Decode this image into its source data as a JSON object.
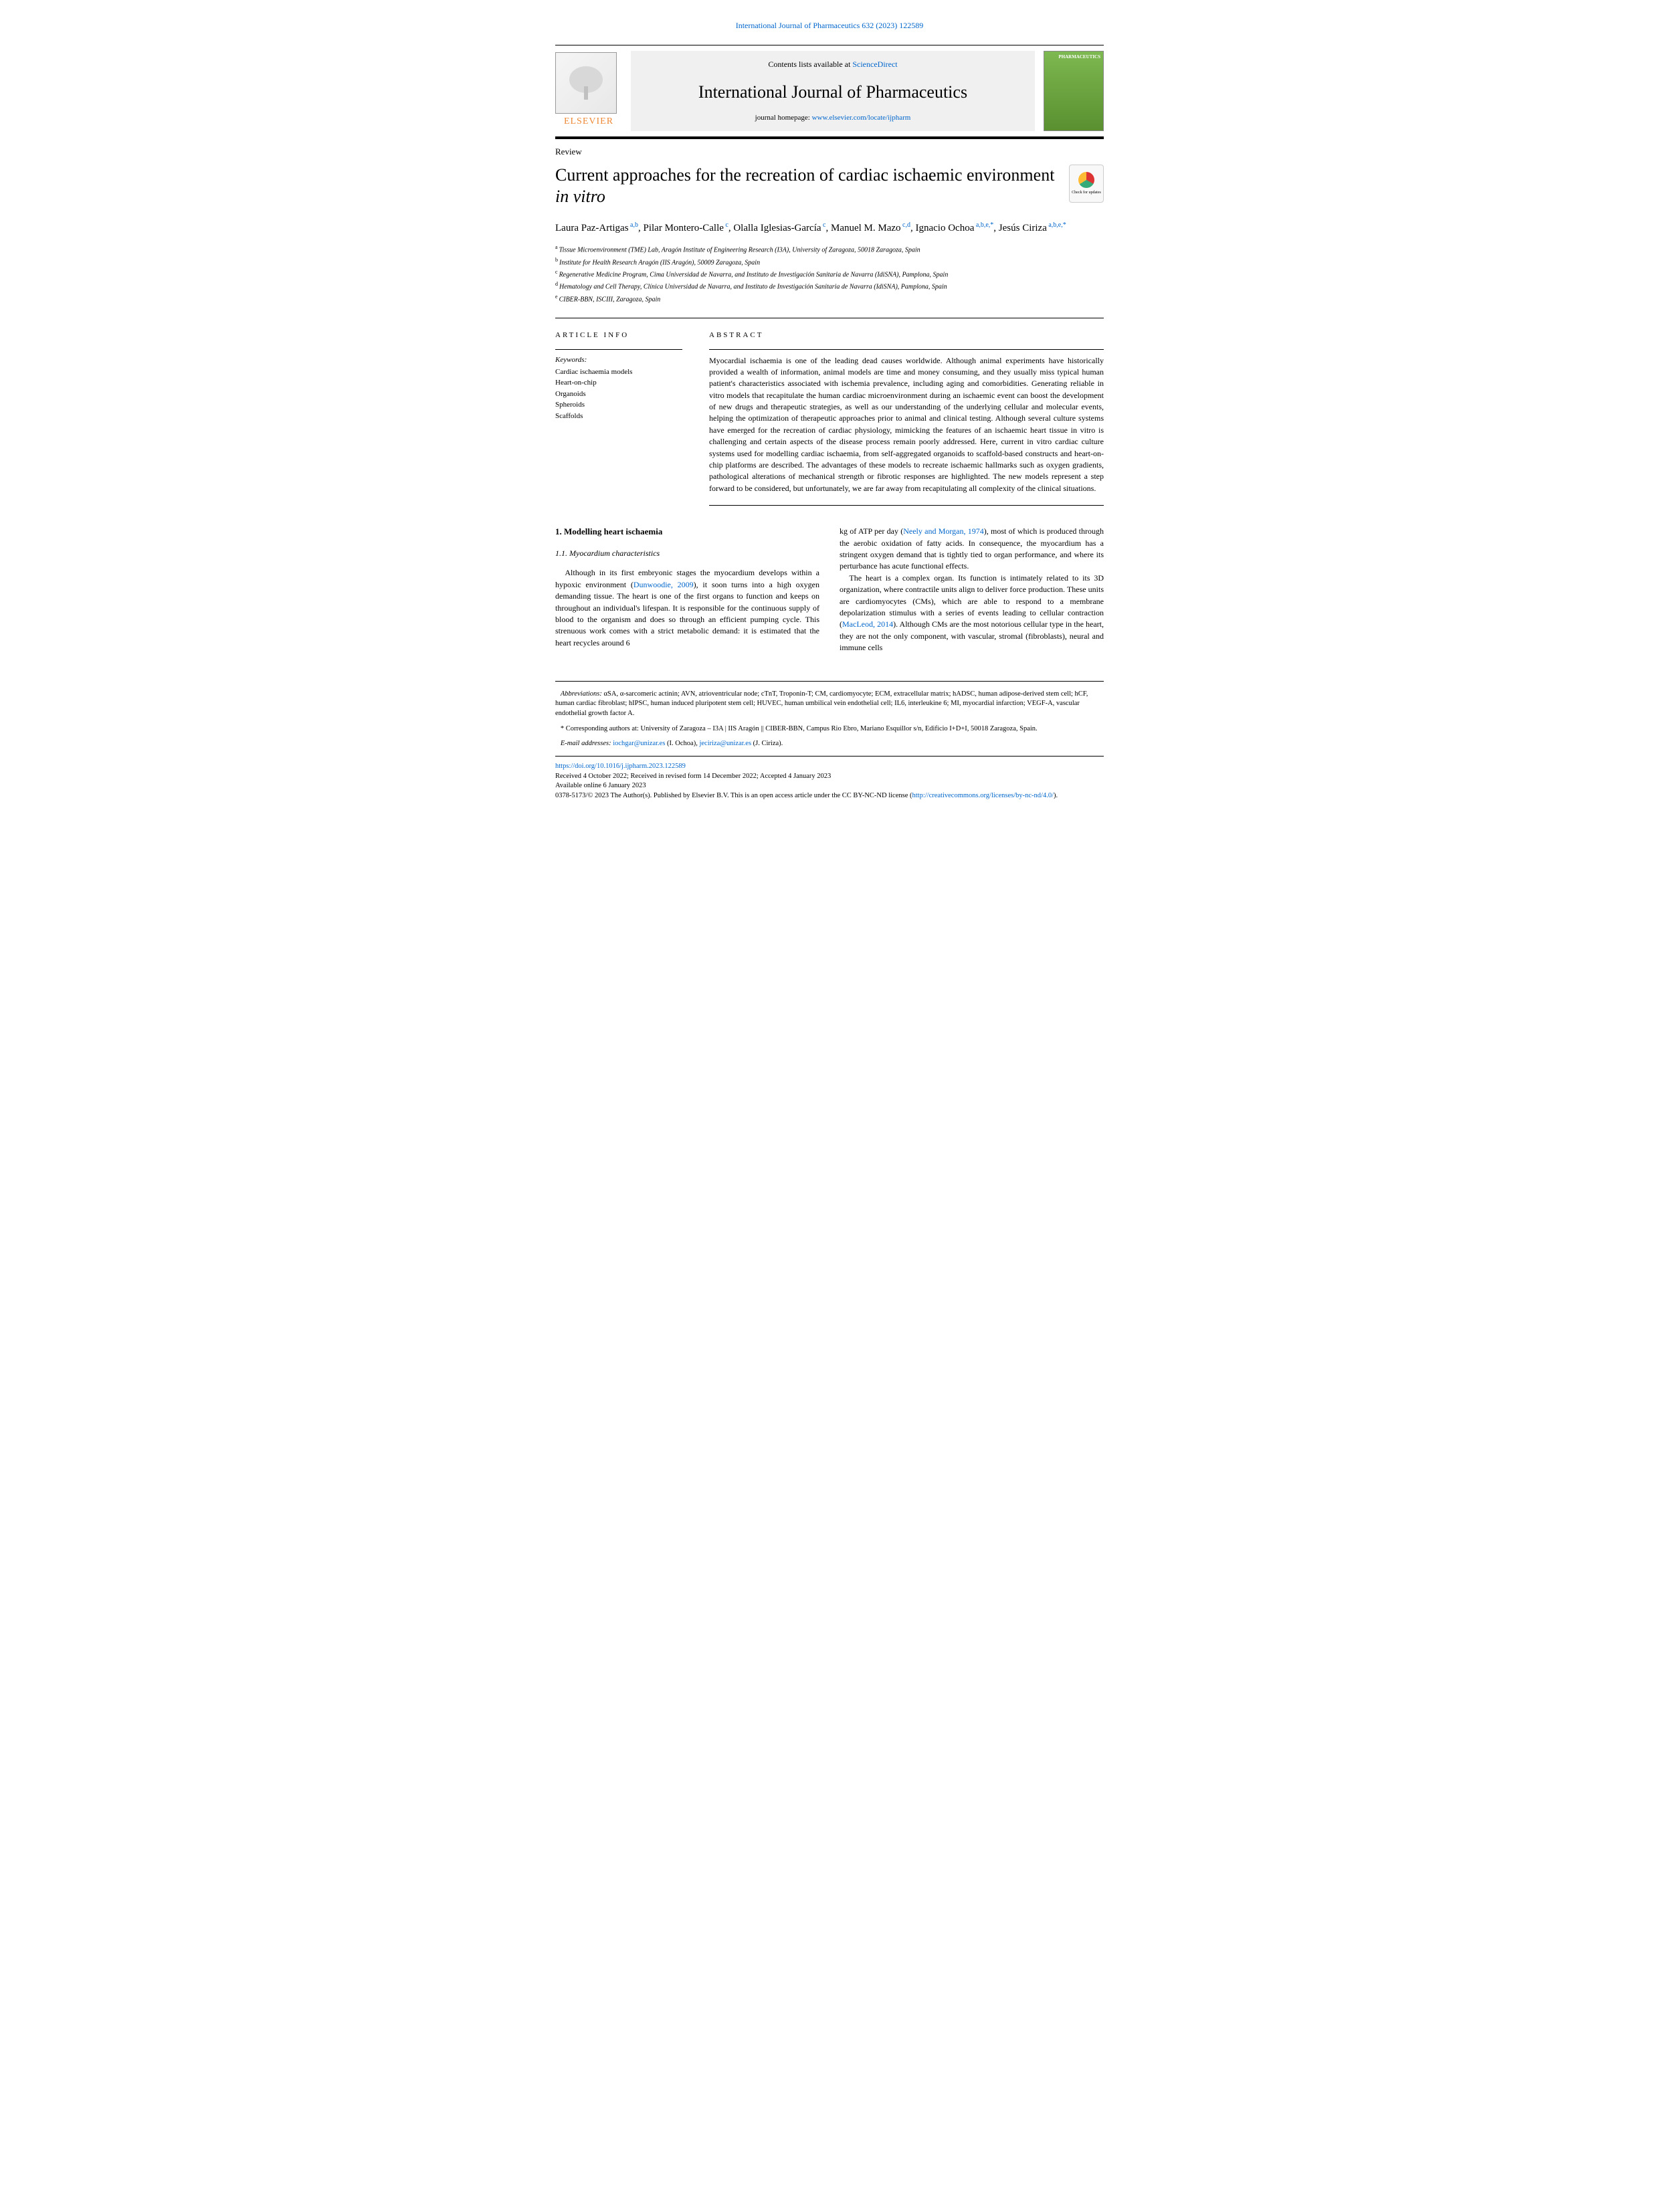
{
  "citation": "International Journal of Pharmaceutics 632 (2023) 122589",
  "header": {
    "contents_prefix": "Contents lists available at ",
    "contents_link": "ScienceDirect",
    "journal_name": "International Journal of Pharmaceutics",
    "homepage_prefix": "journal homepage: ",
    "homepage_url": "www.elsevier.com/locate/ijpharm",
    "publisher": "ELSEVIER",
    "cover_text": "PHARMACEUTICS"
  },
  "check_updates": "Check for updates",
  "article": {
    "type": "Review",
    "title_line1": "Current approaches for the recreation of cardiac ischaemic environment",
    "title_line2": "in vitro"
  },
  "authors_html": "Laura Paz-Artigas|a,b|, Pilar Montero-Calle|c|, Olalla Iglesias-García|c|, Manuel M. Mazo|c,d|, Ignacio Ochoa|a,b,e,*|, Jesús Ciriza|a,b,e,*|",
  "authors": [
    {
      "name": "Laura Paz-Artigas",
      "sup": "a,b"
    },
    {
      "name": "Pilar Montero-Calle",
      "sup": "c"
    },
    {
      "name": "Olalla Iglesias-García",
      "sup": "c"
    },
    {
      "name": "Manuel M. Mazo",
      "sup": "c,d"
    },
    {
      "name": "Ignacio Ochoa",
      "sup": "a,b,e,*"
    },
    {
      "name": "Jesús Ciriza",
      "sup": "a,b,e,*"
    }
  ],
  "affiliations": [
    {
      "sup": "a",
      "text": "Tissue Microenvironment (TME) Lab, Aragón Institute of Engineering Research (I3A), University of Zaragoza, 50018 Zaragoza, Spain"
    },
    {
      "sup": "b",
      "text": "Institute for Health Research Aragón (IIS Aragón), 50009 Zaragoza, Spain"
    },
    {
      "sup": "c",
      "text": "Regenerative Medicine Program, Cima Universidad de Navarra, and Instituto de Investigación Sanitaria de Navarra (IdiSNA), Pamplona, Spain"
    },
    {
      "sup": "d",
      "text": "Hematology and Cell Therapy, Clínica Universidad de Navarra, and Instituto de Investigación Sanitaria de Navarra (IdiSNA), Pamplona, Spain"
    },
    {
      "sup": "e",
      "text": "CIBER-BBN, ISCIII, Zaragoza, Spain"
    }
  ],
  "info": {
    "label": "ARTICLE INFO",
    "keywords_label": "Keywords:",
    "keywords": [
      "Cardiac ischaemia models",
      "Heart-on-chip",
      "Organoids",
      "Spheroids",
      "Scaffolds"
    ]
  },
  "abstract": {
    "label": "ABSTRACT",
    "text": "Myocardial ischaemia is one of the leading dead causes worldwide. Although animal experiments have historically provided a wealth of information, animal models are time and money consuming, and they usually miss typical human patient's characteristics associated with ischemia prevalence, including aging and comorbidities. Generating reliable in vitro models that recapitulate the human cardiac microenvironment during an ischaemic event can boost the development of new drugs and therapeutic strategies, as well as our understanding of the underlying cellular and molecular events, helping the optimization of therapeutic approaches prior to animal and clinical testing. Although several culture systems have emerged for the recreation of cardiac physiology, mimicking the features of an ischaemic heart tissue in vitro is challenging and certain aspects of the disease process remain poorly addressed. Here, current in vitro cardiac culture systems used for modelling cardiac ischaemia, from self-aggregated organoids to scaffold-based constructs and heart-on-chip platforms are described. The advantages of these models to recreate ischaemic hallmarks such as oxygen gradients, pathological alterations of mechanical strength or fibrotic responses are highlighted. The new models represent a step forward to be considered, but unfortunately, we are far away from recapitulating all complexity of the clinical situations."
  },
  "body": {
    "h1": "1. Modelling heart ischaemia",
    "h2": "1.1. Myocardium characteristics",
    "col1_p1a": "Although in its first embryonic stages the myocardium develops within a hypoxic environment (",
    "col1_p1_ref": "Dunwoodie, 2009",
    "col1_p1b": "), it soon turns into a high oxygen demanding tissue. The heart is one of the first organs to function and keeps on throughout an individual's lifespan. It is responsible for the continuous supply of blood to the organism and does so through an efficient pumping cycle. This strenuous work comes with a strict metabolic demand: it is estimated that the heart recycles around 6",
    "col2_p1a": "kg of ATP per day (",
    "col2_p1_ref": "Neely and Morgan, 1974",
    "col2_p1b": "), most of which is produced through the aerobic oxidation of fatty acids. In consequence, the myocardium has a stringent oxygen demand that is tightly tied to organ performance, and where its perturbance has acute functional effects.",
    "col2_p2a": "The heart is a complex organ. Its function is intimately related to its 3D organization, where contractile units align to deliver force production. These units are cardiomyocytes (CMs), which are able to respond to a membrane depolarization stimulus with a series of events leading to cellular contraction (",
    "col2_p2_ref": "MacLeod, 2014",
    "col2_p2b": "). Although CMs are the most notorious cellular type in the heart, they are not the only component, with vascular, stromal (fibroblasts), neural and immune cells"
  },
  "footer": {
    "abbrev_label": "Abbreviations:",
    "abbrev_text": " αSA, α-sarcomeric actinin; AVN, atrioventricular node; cTnT, Troponin-T; CM, cardiomyocyte; ECM, extracellular matrix; hADSC, human adipose-derived stem cell; hCF, human cardiac fibroblast; hIPSC, human induced pluripotent stem cell; HUVEC, human umbilical vein endothelial cell; IL6, interleukine 6; MI, myocardial infarction; VEGF-A, vascular endothelial growth factor A.",
    "corr_label": "* Corresponding authors at:",
    "corr_text": " University of Zaragoza – I3A | IIS Aragón || CIBER-BBN, Campus Rio Ebro, Mariano Esquillor s/n, Edificio I+D+I, 50018 Zaragoza, Spain.",
    "email_label": "E-mail addresses:",
    "email1": "iochgar@unizar.es",
    "email1_name": " (I. Ochoa), ",
    "email2": "jeciriza@unizar.es",
    "email2_name": " (J. Ciriza).",
    "doi": "https://doi.org/10.1016/j.ijpharm.2023.122589",
    "received": "Received 4 October 2022; Received in revised form 14 December 2022; Accepted 4 January 2023",
    "available": "Available online 6 January 2023",
    "copyright_a": "0378-5173/© 2023 The Author(s). Published by Elsevier B.V. This is an open access article under the CC BY-NC-ND license (",
    "copyright_link": "http://creativecommons.org/licenses/by-nc-nd/4.0/",
    "copyright_b": ")."
  }
}
